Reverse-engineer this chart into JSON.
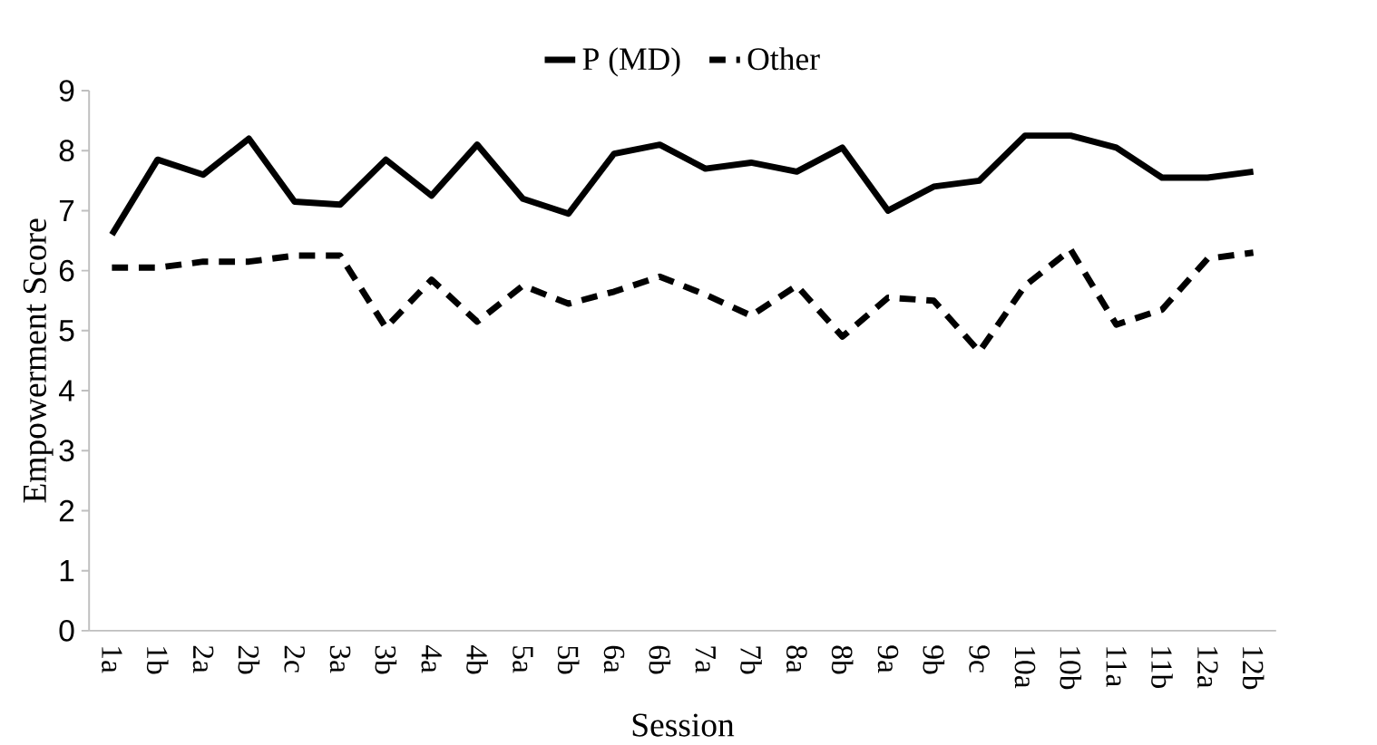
{
  "chart_data": {
    "type": "line",
    "xlabel": "Session",
    "ylabel": "Empowerment Score",
    "categories": [
      "1a",
      "1b",
      "2a",
      "2b",
      "2c",
      "3a",
      "3b",
      "4a",
      "4b",
      "5a",
      "5b",
      "6a",
      "6b",
      "7a",
      "7b",
      "8a",
      "8b",
      "9a",
      "9b",
      "9c",
      "10a",
      "10b",
      "11a",
      "11b",
      "12a",
      "12b"
    ],
    "series": [
      {
        "name": "P (MD)",
        "color": "#000000",
        "line_style": "solid",
        "values": [
          6.6,
          7.85,
          7.6,
          8.2,
          7.15,
          7.1,
          7.85,
          7.25,
          8.1,
          7.2,
          6.95,
          7.95,
          8.1,
          7.7,
          7.8,
          7.65,
          8.05,
          7.0,
          7.4,
          7.5,
          8.25,
          8.25,
          8.05,
          7.55,
          7.55,
          7.65
        ]
      },
      {
        "name": "Other",
        "color": "#000000",
        "line_style": "dashed",
        "values": [
          6.05,
          6.05,
          6.15,
          6.15,
          6.25,
          6.25,
          5.05,
          5.85,
          5.15,
          5.75,
          5.45,
          5.65,
          5.9,
          5.6,
          5.25,
          5.75,
          4.9,
          5.55,
          5.5,
          4.65,
          5.75,
          6.35,
          5.1,
          5.35,
          6.2,
          6.3
        ]
      }
    ],
    "ylim": [
      0,
      9
    ],
    "yticks": [
      0,
      1,
      2,
      3,
      4,
      5,
      6,
      7,
      8,
      9
    ],
    "legend": "top",
    "grid": false
  }
}
